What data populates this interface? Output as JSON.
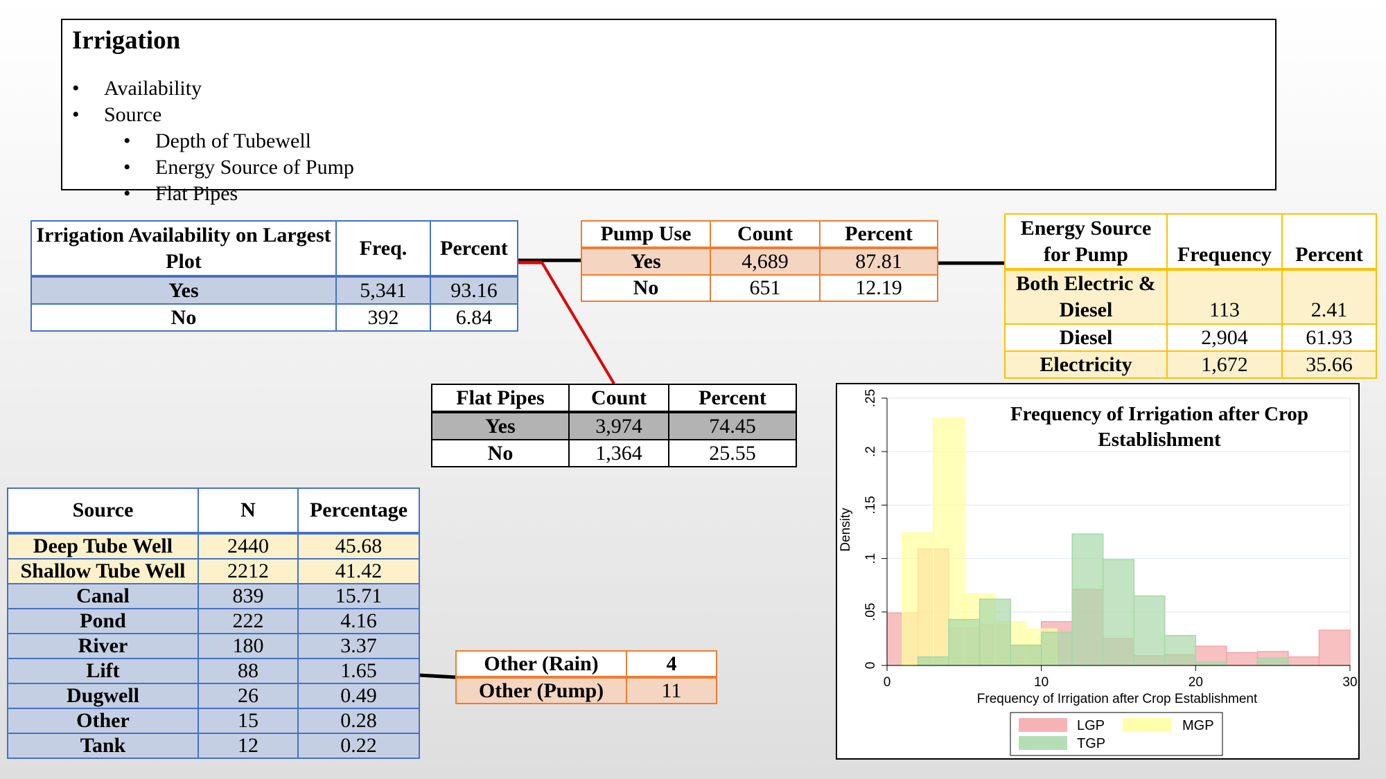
{
  "outline": {
    "title": "Irrigation",
    "bullet": "•",
    "level1": [
      "Availability",
      "Source"
    ],
    "level2": [
      "Depth of Tubewell",
      "Energy Source of Pump",
      "Flat Pipes"
    ]
  },
  "availability_table": {
    "headers": [
      "Irrigation Availability on Largest Plot",
      "Freq.",
      "Percent"
    ],
    "rows": [
      {
        "label": "Yes",
        "freq": "5,341",
        "percent": "93.16"
      },
      {
        "label": "No",
        "freq": "392",
        "percent": "6.84"
      }
    ]
  },
  "pump_table": {
    "headers": [
      "Pump Use",
      "Count",
      "Percent"
    ],
    "rows": [
      {
        "label": "Yes",
        "count": "4,689",
        "percent": "87.81"
      },
      {
        "label": "No",
        "count": "651",
        "percent": "12.19"
      }
    ]
  },
  "energy_table": {
    "headers": [
      "Energy Source for Pump",
      "Frequency",
      "Percent"
    ],
    "rows": [
      {
        "label": "Both Electric & Diesel",
        "freq": "113",
        "percent": "2.41"
      },
      {
        "label": "Diesel",
        "freq": "2,904",
        "percent": "61.93"
      },
      {
        "label": "Electricity",
        "freq": "1,672",
        "percent": "35.66"
      }
    ]
  },
  "flat_pipes_table": {
    "headers": [
      "Flat Pipes",
      "Count",
      "Percent"
    ],
    "rows": [
      {
        "label": "Yes",
        "count": "3,974",
        "percent": "74.45"
      },
      {
        "label": "No",
        "count": "1,364",
        "percent": "25.55"
      }
    ]
  },
  "source_table": {
    "headers": [
      "Source",
      "N",
      "Percentage"
    ],
    "rows": [
      {
        "label": "Deep Tube Well",
        "n": "2440",
        "pct": "45.68"
      },
      {
        "label": "Shallow Tube Well",
        "n": "2212",
        "pct": "41.42"
      },
      {
        "label": "Canal",
        "n": "839",
        "pct": "15.71"
      },
      {
        "label": "Pond",
        "n": "222",
        "pct": "4.16"
      },
      {
        "label": "River",
        "n": "180",
        "pct": "3.37"
      },
      {
        "label": "Lift",
        "n": "88",
        "pct": "1.65"
      },
      {
        "label": "Dugwell",
        "n": "26",
        "pct": "0.49"
      },
      {
        "label": "Other",
        "n": "15",
        "pct": "0.28"
      },
      {
        "label": "Tank",
        "n": "12",
        "pct": "0.22"
      }
    ]
  },
  "other_table": {
    "rows": [
      {
        "label": "Other (Rain)",
        "value": "4"
      },
      {
        "label": "Other (Pump)",
        "value": "11"
      }
    ]
  },
  "colors": {
    "blue": "#4472c4",
    "orange": "#ed7d31",
    "gold": "#ffc000",
    "connector_red": "#e00000",
    "connector_black": "#000000"
  },
  "chart_data": {
    "type": "histogram",
    "title": "Frequency of Irrigation after Crop Establishment",
    "xlabel": "Frequency of Irrigation after Crop Establishment",
    "ylabel": "Density",
    "xlim": [
      0,
      30
    ],
    "ylim": [
      0,
      0.25
    ],
    "xticks": [
      "0",
      "10",
      "20",
      "30"
    ],
    "yticks": [
      "0",
      ".05",
      ".1",
      ".15",
      ".2",
      ".25"
    ],
    "legend_position": "bottom",
    "series": [
      {
        "name": "LGP",
        "color": "#f4a6a8",
        "bins": [
          {
            "x0": 0,
            "x1": 2,
            "y": 0.049
          },
          {
            "x0": 2,
            "x1": 4,
            "y": 0.109
          },
          {
            "x0": 4,
            "x1": 6,
            "y": 0.035
          },
          {
            "x0": 6,
            "x1": 8,
            "y": 0.038
          },
          {
            "x0": 8,
            "x1": 10,
            "y": 0.018
          },
          {
            "x0": 10,
            "x1": 12,
            "y": 0.041
          },
          {
            "x0": 12,
            "x1": 14,
            "y": 0.071
          },
          {
            "x0": 14,
            "x1": 16,
            "y": 0.025
          },
          {
            "x0": 16,
            "x1": 18,
            "y": 0.009
          },
          {
            "x0": 18,
            "x1": 20,
            "y": 0.01
          },
          {
            "x0": 20,
            "x1": 22,
            "y": 0.018
          },
          {
            "x0": 22,
            "x1": 24,
            "y": 0.012
          },
          {
            "x0": 24,
            "x1": 26,
            "y": 0.013
          },
          {
            "x0": 26,
            "x1": 28,
            "y": 0.008
          },
          {
            "x0": 28,
            "x1": 30,
            "y": 0.033
          }
        ]
      },
      {
        "name": "MGP",
        "color": "#ffff9c",
        "bins": [
          {
            "x0": 1,
            "x1": 3,
            "y": 0.124
          },
          {
            "x0": 3,
            "x1": 5,
            "y": 0.231
          },
          {
            "x0": 5,
            "x1": 7,
            "y": 0.067
          },
          {
            "x0": 7,
            "x1": 9,
            "y": 0.041
          },
          {
            "x0": 9,
            "x1": 11,
            "y": 0.034
          }
        ]
      },
      {
        "name": "TGP",
        "color": "#a8d8a8",
        "bins": [
          {
            "x0": 2,
            "x1": 4,
            "y": 0.008
          },
          {
            "x0": 4,
            "x1": 6,
            "y": 0.043
          },
          {
            "x0": 6,
            "x1": 8,
            "y": 0.062
          },
          {
            "x0": 8,
            "x1": 10,
            "y": 0.019
          },
          {
            "x0": 10,
            "x1": 12,
            "y": 0.031
          },
          {
            "x0": 12,
            "x1": 14,
            "y": 0.123
          },
          {
            "x0": 14,
            "x1": 16,
            "y": 0.099
          },
          {
            "x0": 16,
            "x1": 18,
            "y": 0.065
          },
          {
            "x0": 18,
            "x1": 20,
            "y": 0.028
          },
          {
            "x0": 20,
            "x1": 22,
            "y": 0.003
          },
          {
            "x0": 24,
            "x1": 26,
            "y": 0.007
          }
        ]
      }
    ]
  }
}
